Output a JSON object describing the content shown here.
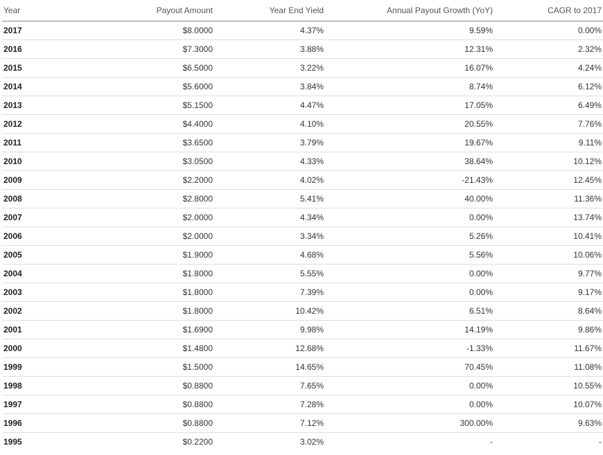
{
  "table": {
    "headers": {
      "year": "Year",
      "payout": "Payout Amount",
      "yield": "Year End Yield",
      "growth": "Annual Payout Growth (YoY)",
      "cagr": "CAGR to 2017"
    },
    "rows": [
      {
        "year": "2017",
        "payout": "$8.0000",
        "yield": "4.37%",
        "growth": "9.59%",
        "cagr": "0.00%"
      },
      {
        "year": "2016",
        "payout": "$7.3000",
        "yield": "3.88%",
        "growth": "12.31%",
        "cagr": "2.32%"
      },
      {
        "year": "2015",
        "payout": "$6.5000",
        "yield": "3.22%",
        "growth": "16.07%",
        "cagr": "4.24%"
      },
      {
        "year": "2014",
        "payout": "$5.6000",
        "yield": "3.84%",
        "growth": "8.74%",
        "cagr": "6.12%"
      },
      {
        "year": "2013",
        "payout": "$5.1500",
        "yield": "4.47%",
        "growth": "17.05%",
        "cagr": "6.49%"
      },
      {
        "year": "2012",
        "payout": "$4.4000",
        "yield": "4.10%",
        "growth": "20.55%",
        "cagr": "7.76%"
      },
      {
        "year": "2011",
        "payout": "$3.6500",
        "yield": "3.79%",
        "growth": "19.67%",
        "cagr": "9.11%"
      },
      {
        "year": "2010",
        "payout": "$3.0500",
        "yield": "4.33%",
        "growth": "38.64%",
        "cagr": "10.12%"
      },
      {
        "year": "2009",
        "payout": "$2.2000",
        "yield": "4.02%",
        "growth": "-21.43%",
        "cagr": "12.45%"
      },
      {
        "year": "2008",
        "payout": "$2.8000",
        "yield": "5.41%",
        "growth": "40.00%",
        "cagr": "11.36%"
      },
      {
        "year": "2007",
        "payout": "$2.0000",
        "yield": "4.34%",
        "growth": "0.00%",
        "cagr": "13.74%"
      },
      {
        "year": "2006",
        "payout": "$2.0000",
        "yield": "3.34%",
        "growth": "5.26%",
        "cagr": "10.41%"
      },
      {
        "year": "2005",
        "payout": "$1.9000",
        "yield": "4.68%",
        "growth": "5.56%",
        "cagr": "10.06%"
      },
      {
        "year": "2004",
        "payout": "$1.8000",
        "yield": "5.55%",
        "growth": "0.00%",
        "cagr": "9.77%"
      },
      {
        "year": "2003",
        "payout": "$1.8000",
        "yield": "7.39%",
        "growth": "0.00%",
        "cagr": "9.17%"
      },
      {
        "year": "2002",
        "payout": "$1.8000",
        "yield": "10.42%",
        "growth": "6.51%",
        "cagr": "8.64%"
      },
      {
        "year": "2001",
        "payout": "$1.6900",
        "yield": "9.98%",
        "growth": "14.19%",
        "cagr": "9.86%"
      },
      {
        "year": "2000",
        "payout": "$1.4800",
        "yield": "12.68%",
        "growth": "-1.33%",
        "cagr": "11.67%"
      },
      {
        "year": "1999",
        "payout": "$1.5000",
        "yield": "14.65%",
        "growth": "70.45%",
        "cagr": "11.08%"
      },
      {
        "year": "1998",
        "payout": "$0.8800",
        "yield": "7.65%",
        "growth": "0.00%",
        "cagr": "10.55%"
      },
      {
        "year": "1997",
        "payout": "$0.8800",
        "yield": "7.28%",
        "growth": "0.00%",
        "cagr": "10.07%"
      },
      {
        "year": "1996",
        "payout": "$0.8800",
        "yield": "7.12%",
        "growth": "300.00%",
        "cagr": "9.63%"
      },
      {
        "year": "1995",
        "payout": "$0.2200",
        "yield": "3.02%",
        "growth": "-",
        "cagr": "-"
      }
    ]
  }
}
